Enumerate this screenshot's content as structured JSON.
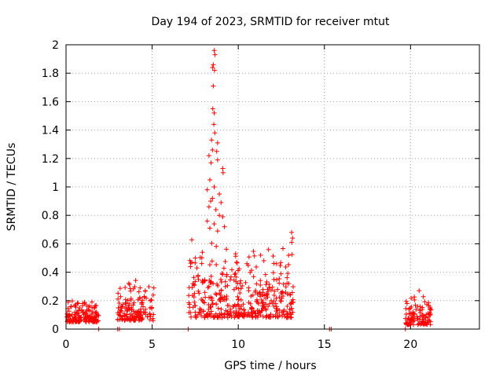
{
  "chart_data": {
    "type": "scatter",
    "title": "Day 194 of 2023, SRMTID for receiver mtut",
    "xlabel": "GPS time / hours",
    "ylabel": "SRMTID / TECUs",
    "xlim": [
      0,
      24
    ],
    "ylim": [
      0,
      2
    ],
    "xticks": [
      0,
      5,
      10,
      15,
      20
    ],
    "yticks": [
      0,
      0.2,
      0.4,
      0.6,
      0.8,
      1,
      1.2,
      1.4,
      1.6,
      1.8,
      2
    ],
    "xtick_labels": [
      "0",
      "5",
      "10",
      "15",
      "20"
    ],
    "ytick_labels": [
      "0",
      "0.2",
      "0.4",
      "0.6",
      "0.8",
      "1",
      "1.2",
      "1.4",
      "1.6",
      "1.8",
      "2"
    ],
    "grid": true,
    "marker": "+",
    "color": "#ff0000",
    "series": [
      {
        "name": "SRMTID",
        "clusters": [
          {
            "x_range": [
              0.0,
              1.9
            ],
            "y_base": 0.05,
            "y_spread": 0.1,
            "count": 160
          },
          {
            "x_range": [
              3.0,
              5.1
            ],
            "y_base": 0.06,
            "y_spread": 0.2,
            "count": 150
          },
          {
            "x_range": [
              7.1,
              13.2
            ],
            "y_base": 0.08,
            "y_spread": 0.35,
            "count": 420
          },
          {
            "x_range": [
              19.7,
              21.2
            ],
            "y_base": 0.03,
            "y_spread": 0.15,
            "count": 110
          }
        ],
        "points": [
          [
            8.6,
            1.96
          ],
          [
            8.65,
            1.93
          ],
          [
            8.55,
            1.86
          ],
          [
            8.5,
            1.84
          ],
          [
            8.62,
            1.82
          ],
          [
            8.55,
            1.71
          ],
          [
            8.52,
            1.55
          ],
          [
            8.6,
            1.52
          ],
          [
            8.64,
            1.38
          ],
          [
            8.58,
            1.44
          ],
          [
            8.45,
            1.33
          ],
          [
            8.8,
            1.31
          ],
          [
            8.75,
            1.25
          ],
          [
            8.5,
            1.26
          ],
          [
            8.3,
            1.22
          ],
          [
            8.42,
            1.17
          ],
          [
            8.8,
            1.19
          ],
          [
            9.1,
            1.13
          ],
          [
            9.12,
            1.1
          ],
          [
            8.35,
            1.05
          ],
          [
            8.6,
            1.0
          ],
          [
            8.2,
            0.98
          ],
          [
            8.5,
            0.92
          ],
          [
            8.9,
            0.95
          ],
          [
            8.4,
            0.9
          ],
          [
            9.0,
            0.89
          ],
          [
            8.3,
            0.86
          ],
          [
            8.7,
            0.84
          ],
          [
            8.9,
            0.8
          ],
          [
            9.1,
            0.79
          ],
          [
            8.2,
            0.76
          ],
          [
            8.6,
            0.74
          ],
          [
            9.2,
            0.72
          ],
          [
            8.35,
            0.71
          ],
          [
            8.8,
            0.69
          ],
          [
            13.1,
            0.68
          ],
          [
            13.15,
            0.64
          ],
          [
            13.1,
            0.61
          ],
          [
            7.5,
            0.5
          ],
          [
            7.3,
            0.47
          ],
          [
            7.6,
            0.43
          ],
          [
            11.3,
            0.52
          ],
          [
            10.5,
            0.46
          ],
          [
            0.3,
            0.16
          ],
          [
            0.7,
            0.18
          ],
          [
            4.3,
            0.29
          ],
          [
            4.6,
            0.27
          ],
          [
            20.5,
            0.27
          ],
          [
            15.3,
            0.0
          ],
          [
            15.4,
            0.0
          ],
          [
            3.0,
            0.0
          ],
          [
            3.1,
            0.0
          ],
          [
            19.7,
            0.0
          ],
          [
            7.1,
            0.0
          ],
          [
            1.9,
            0.0
          ]
        ]
      }
    ]
  }
}
